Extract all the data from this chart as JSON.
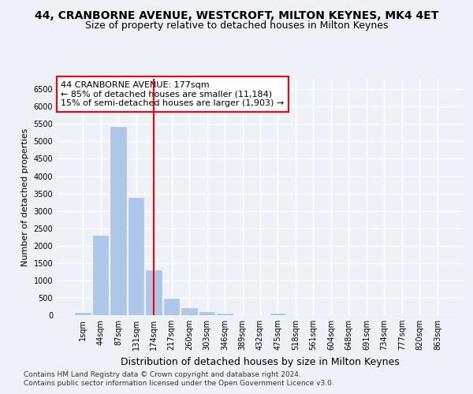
{
  "title": "44, CRANBORNE AVENUE, WESTCROFT, MILTON KEYNES, MK4 4ET",
  "subtitle": "Size of property relative to detached houses in Milton Keynes",
  "xlabel": "Distribution of detached houses by size in Milton Keynes",
  "ylabel": "Number of detached properties",
  "footer_line1": "Contains HM Land Registry data © Crown copyright and database right 2024.",
  "footer_line2": "Contains public sector information licensed under the Open Government Licence v3.0.",
  "bar_labels": [
    "1sqm",
    "44sqm",
    "87sqm",
    "131sqm",
    "174sqm",
    "217sqm",
    "260sqm",
    "303sqm",
    "346sqm",
    "389sqm",
    "432sqm",
    "475sqm",
    "518sqm",
    "561sqm",
    "604sqm",
    "648sqm",
    "691sqm",
    "734sqm",
    "777sqm",
    "820sqm",
    "863sqm"
  ],
  "bar_values": [
    75,
    2280,
    5420,
    3380,
    1300,
    480,
    215,
    100,
    55,
    0,
    0,
    55,
    0,
    0,
    0,
    0,
    0,
    0,
    0,
    0,
    0
  ],
  "bar_color": "#aec6e8",
  "bar_edge_color": "#aec6e8",
  "vline_x": 4.0,
  "vline_color": "red",
  "annotation_title": "44 CRANBORNE AVENUE: 177sqm",
  "annotation_line1": "← 85% of detached houses are smaller (11,184)",
  "annotation_line2": "15% of semi-detached houses are larger (1,903) →",
  "annotation_box_color": "red",
  "ylim": [
    0,
    6800
  ],
  "yticks": [
    0,
    500,
    1000,
    1500,
    2000,
    2500,
    3000,
    3500,
    4000,
    4500,
    5000,
    5500,
    6000,
    6500
  ],
  "background_color": "#eef2f8",
  "grid_color": "white",
  "title_fontsize": 10,
  "subtitle_fontsize": 9,
  "xlabel_fontsize": 9,
  "ylabel_fontsize": 8,
  "tick_fontsize": 7,
  "annotation_fontsize": 8,
  "footer_fontsize": 6.5
}
